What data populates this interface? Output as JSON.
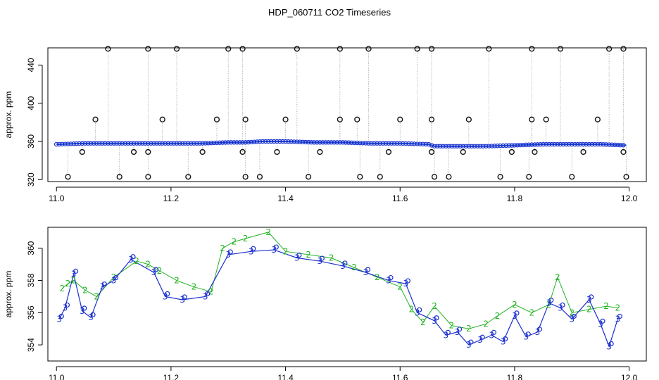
{
  "chart_data": [
    {
      "type": "scatter",
      "title": "HDP_060711  CO2 Timeseries",
      "xlabel": "",
      "ylabel": "approx. ppm",
      "xlim": [
        10.985,
        12.03
      ],
      "ylim": [
        318,
        458
      ],
      "x_ticks": [
        "11.0",
        "11.2",
        "11.4",
        "11.6",
        "11.8",
        "12.0"
      ],
      "y_ticks": [
        "320",
        "360",
        "400",
        "440"
      ],
      "baseline": {
        "x": [
          11.0,
          11.05,
          11.1,
          11.15,
          11.2,
          11.25,
          11.3,
          11.33,
          11.36,
          11.4,
          11.45,
          11.5,
          11.55,
          11.6,
          11.65,
          11.66,
          11.7,
          11.75,
          11.8,
          11.85,
          11.9,
          11.95,
          11.995
        ],
        "y": [
          357,
          358,
          358,
          358,
          358,
          358,
          359,
          359,
          360,
          360,
          359,
          359,
          358,
          358,
          357,
          355,
          355,
          355,
          356,
          357,
          357,
          357,
          356
        ]
      },
      "outliers": {
        "x": [
          11.09,
          11.16,
          11.21,
          11.3,
          11.325,
          11.42,
          11.495,
          11.545,
          11.63,
          11.655,
          11.755,
          11.83,
          11.88,
          11.965,
          11.99,
          11.068,
          11.185,
          11.28,
          11.33,
          11.4,
          11.495,
          11.525,
          11.6,
          11.655,
          11.72,
          11.83,
          11.855,
          11.945,
          11.02,
          11.11,
          11.16,
          11.23,
          11.33,
          11.355,
          11.44,
          11.53,
          11.565,
          11.66,
          11.685,
          11.775,
          11.825,
          11.9,
          11.995,
          11.045,
          11.135,
          11.16,
          11.255,
          11.325,
          11.385,
          11.46,
          11.58,
          11.655,
          11.71,
          11.795,
          11.835,
          11.92,
          11.99
        ],
        "y": [
          457,
          457,
          457,
          457,
          457,
          457,
          457,
          457,
          457,
          457,
          457,
          457,
          457,
          457,
          457,
          383,
          383,
          383,
          383,
          383,
          383,
          383,
          383,
          383,
          383,
          383,
          383,
          383,
          323,
          323,
          323,
          323,
          323,
          323,
          323,
          323,
          323,
          323,
          323,
          323,
          323,
          323,
          323,
          349,
          349,
          349,
          349,
          349,
          349,
          349,
          349,
          349,
          349,
          349,
          349,
          349,
          349
        ]
      }
    },
    {
      "type": "scatter",
      "title": "",
      "xlabel": "",
      "ylabel": "approx. ppm",
      "xlim": [
        10.985,
        12.03
      ],
      "ylim": [
        353,
        361.3
      ],
      "x_ticks": [
        "11.0",
        "11.2",
        "11.4",
        "11.6",
        "11.8",
        "12.0"
      ],
      "y_ticks": [
        "354",
        "356",
        "358",
        "360"
      ],
      "marker_label_2": "2",
      "marker_label_3": "3",
      "series": [
        {
          "name": "",
          "marker": "2",
          "color": "#22b322",
          "x": [
            11.01,
            11.02,
            11.03,
            11.05,
            11.07,
            11.1,
            11.14,
            11.16,
            11.18,
            11.21,
            11.24,
            11.27,
            11.29,
            11.31,
            11.33,
            11.37,
            11.4,
            11.44,
            11.48,
            11.52,
            11.56,
            11.6,
            11.62,
            11.64,
            11.66,
            11.69,
            11.72,
            11.75,
            11.77,
            11.8,
            11.83,
            11.86,
            11.875,
            11.9,
            11.93,
            11.96,
            11.98
          ],
          "y": [
            357.5,
            357.8,
            358.0,
            357.4,
            357.0,
            358.2,
            359.2,
            359.0,
            358.6,
            358.0,
            357.6,
            357.3,
            360.0,
            360.4,
            360.6,
            361.0,
            359.8,
            359.6,
            359.4,
            358.8,
            358.2,
            357.6,
            356.2,
            355.4,
            356.4,
            355.2,
            355.0,
            355.3,
            355.8,
            356.5,
            356.0,
            356.5,
            358.2,
            356.0,
            356.2,
            356.4,
            356.3
          ]
        },
        {
          "name": "",
          "marker": "3",
          "color": "#1a2fd0",
          "x": [
            11.005,
            11.015,
            11.03,
            11.045,
            11.06,
            11.08,
            11.1,
            11.13,
            11.17,
            11.19,
            11.22,
            11.26,
            11.3,
            11.34,
            11.38,
            11.42,
            11.46,
            11.5,
            11.54,
            11.58,
            11.61,
            11.63,
            11.66,
            11.68,
            11.7,
            11.72,
            11.74,
            11.76,
            11.78,
            11.8,
            11.82,
            11.84,
            11.86,
            11.88,
            11.9,
            11.93,
            11.95,
            11.965,
            11.98
          ],
          "y": [
            355.6,
            356.3,
            358.4,
            356.1,
            355.7,
            357.6,
            358.0,
            359.3,
            358.5,
            357.0,
            356.8,
            357.0,
            359.6,
            359.8,
            359.9,
            359.4,
            359.2,
            358.9,
            358.5,
            358.0,
            357.8,
            356.0,
            355.5,
            354.6,
            354.8,
            354.0,
            354.3,
            354.6,
            354.2,
            355.8,
            354.5,
            354.8,
            356.6,
            356.3,
            355.6,
            356.8,
            355.3,
            353.9,
            355.6
          ]
        }
      ]
    }
  ]
}
